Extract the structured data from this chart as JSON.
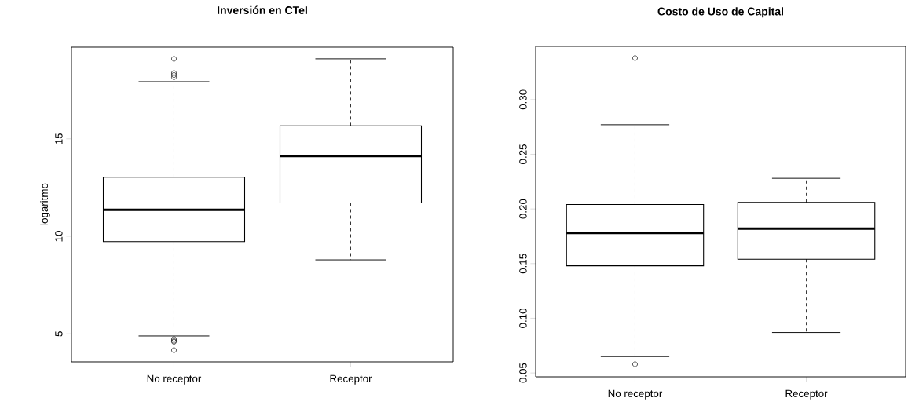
{
  "chart_data": [
    {
      "type": "box",
      "title": "Inversión en CTeI",
      "ylabel": "logaritmo",
      "categories": [
        "No receptor",
        "Receptor"
      ],
      "boxes": [
        {
          "low": 4.89,
          "q1": 9.73,
          "median": 11.36,
          "q3": 13.03,
          "high": 17.93,
          "outliers": [
            19.1,
            18.37,
            18.27,
            18.16,
            4.73,
            4.64,
            4.59,
            4.16
          ]
        },
        {
          "low": 8.79,
          "q1": 11.71,
          "median": 14.11,
          "q3": 15.66,
          "high": 19.1
        }
      ],
      "ylim": [
        3.56,
        19.7
      ],
      "yticks": [
        5,
        10,
        15
      ]
    },
    {
      "type": "box",
      "title": "Costo de Uso de Capital",
      "categories": [
        "No receptor",
        "Receptor"
      ],
      "boxes": [
        {
          "low": 0.065,
          "q1": 0.148,
          "median": 0.178,
          "q3": 0.204,
          "high": 0.277,
          "outliers": [
            0.338,
            0.058
          ]
        },
        {
          "low": 0.087,
          "q1": 0.154,
          "median": 0.182,
          "q3": 0.206,
          "high": 0.228
        }
      ],
      "ylim": [
        0.0465,
        0.3487
      ],
      "yticks": [
        {
          "value": 0.05,
          "label": "0.05"
        },
        {
          "value": 0.1,
          "label": "0.10"
        },
        {
          "value": 0.15,
          "label": "0.15"
        },
        {
          "value": 0.2,
          "label": "0.20"
        },
        {
          "value": 0.25,
          "label": "0.25"
        },
        {
          "value": 0.3,
          "label": "0.30"
        }
      ]
    }
  ]
}
